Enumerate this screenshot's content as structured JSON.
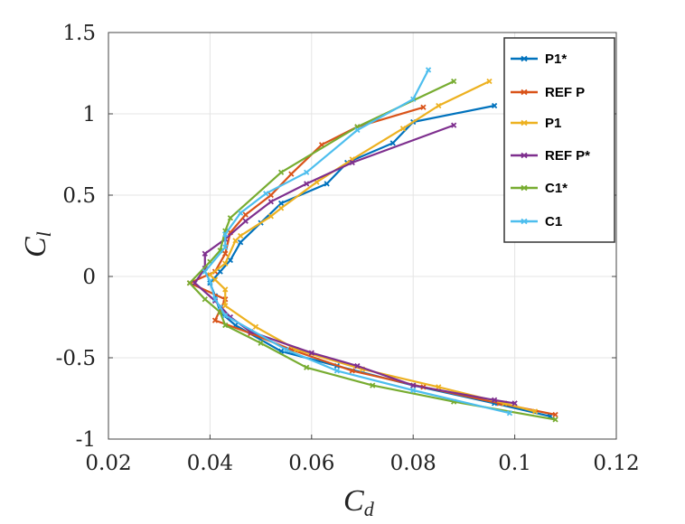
{
  "chart_data": {
    "type": "line",
    "title": "",
    "xlabel": "C",
    "xlabel_sub": "d",
    "ylabel": "C",
    "ylabel_sub": "l",
    "xlim": [
      0.02,
      0.12
    ],
    "ylim": [
      -1,
      1.5
    ],
    "xticks": [
      0.02,
      0.04,
      0.06,
      0.08,
      0.1,
      0.12
    ],
    "xtick_labels": [
      "0.02",
      "0.04",
      "0.06",
      "0.08",
      "0.1",
      "0.12"
    ],
    "yticks": [
      -1,
      -0.5,
      0,
      0.5,
      1,
      1.5
    ],
    "ytick_labels": [
      "-1",
      "-0.5",
      "0",
      "0.5",
      "1",
      "1.5"
    ],
    "grid": true,
    "legend_position": "top-right",
    "series": [
      {
        "name": "P1*",
        "color": "#0072BD",
        "points": [
          [
            0.096,
            1.05
          ],
          [
            0.08,
            0.95
          ],
          [
            0.076,
            0.82
          ],
          [
            0.067,
            0.7
          ],
          [
            0.063,
            0.57
          ],
          [
            0.054,
            0.45
          ],
          [
            0.05,
            0.33
          ],
          [
            0.046,
            0.21
          ],
          [
            0.044,
            0.1
          ],
          [
            0.042,
            0.03
          ],
          [
            0.04,
            -0.04
          ],
          [
            0.041,
            -0.12
          ],
          [
            0.042,
            -0.22
          ],
          [
            0.045,
            -0.3
          ],
          [
            0.054,
            -0.46
          ],
          [
            0.065,
            -0.55
          ],
          [
            0.08,
            -0.67
          ],
          [
            0.096,
            -0.78
          ],
          [
            0.107,
            -0.86
          ]
        ]
      },
      {
        "name": "REF P",
        "color": "#D95319",
        "points": [
          [
            0.082,
            1.04
          ],
          [
            0.069,
            0.92
          ],
          [
            0.062,
            0.81
          ],
          [
            0.056,
            0.63
          ],
          [
            0.052,
            0.5
          ],
          [
            0.047,
            0.38
          ],
          [
            0.044,
            0.27
          ],
          [
            0.043,
            0.14
          ],
          [
            0.041,
            0.03
          ],
          [
            0.036,
            -0.04
          ],
          [
            0.043,
            -0.14
          ],
          [
            0.041,
            -0.27
          ],
          [
            0.048,
            -0.35
          ],
          [
            0.056,
            -0.45
          ],
          [
            0.068,
            -0.58
          ],
          [
            0.082,
            -0.68
          ],
          [
            0.097,
            -0.78
          ],
          [
            0.108,
            -0.85
          ]
        ]
      },
      {
        "name": "P1",
        "color": "#EDB120",
        "points": [
          [
            0.095,
            1.2
          ],
          [
            0.085,
            1.05
          ],
          [
            0.078,
            0.91
          ],
          [
            0.068,
            0.72
          ],
          [
            0.061,
            0.58
          ],
          [
            0.054,
            0.42
          ],
          [
            0.052,
            0.37
          ],
          [
            0.046,
            0.25
          ],
          [
            0.045,
            0.22
          ],
          [
            0.043,
            0.08
          ],
          [
            0.04,
            0.01
          ],
          [
            0.041,
            -0.02
          ],
          [
            0.043,
            -0.08
          ],
          [
            0.043,
            -0.18
          ],
          [
            0.049,
            -0.31
          ],
          [
            0.057,
            -0.45
          ],
          [
            0.07,
            -0.57
          ],
          [
            0.085,
            -0.68
          ],
          [
            0.098,
            -0.78
          ],
          [
            0.104,
            -0.83
          ]
        ]
      },
      {
        "name": "REF P*",
        "color": "#7E2F8E",
        "points": [
          [
            0.088,
            0.93
          ],
          [
            0.068,
            0.7
          ],
          [
            0.059,
            0.57
          ],
          [
            0.052,
            0.46
          ],
          [
            0.047,
            0.34
          ],
          [
            0.043,
            0.23
          ],
          [
            0.039,
            0.14
          ],
          [
            0.039,
            0.05
          ],
          [
            0.037,
            -0.04
          ],
          [
            0.041,
            -0.15
          ],
          [
            0.044,
            -0.25
          ],
          [
            0.048,
            -0.34
          ],
          [
            0.06,
            -0.47
          ],
          [
            0.069,
            -0.55
          ],
          [
            0.08,
            -0.67
          ],
          [
            0.096,
            -0.76
          ],
          [
            0.1,
            -0.78
          ]
        ]
      },
      {
        "name": "C1*",
        "color": "#77AC30",
        "points": [
          [
            0.088,
            1.2
          ],
          [
            0.069,
            0.92
          ],
          [
            0.054,
            0.64
          ],
          [
            0.044,
            0.36
          ],
          [
            0.043,
            0.28
          ],
          [
            0.042,
            0.16
          ],
          [
            0.04,
            0.09
          ],
          [
            0.036,
            -0.04
          ],
          [
            0.039,
            -0.14
          ],
          [
            0.042,
            -0.22
          ],
          [
            0.043,
            -0.3
          ],
          [
            0.05,
            -0.41
          ],
          [
            0.059,
            -0.56
          ],
          [
            0.072,
            -0.67
          ],
          [
            0.088,
            -0.77
          ],
          [
            0.108,
            -0.88
          ]
        ]
      },
      {
        "name": "C1",
        "color": "#4DBEEE",
        "points": [
          [
            0.083,
            1.27
          ],
          [
            0.08,
            1.09
          ],
          [
            0.069,
            0.9
          ],
          [
            0.059,
            0.64
          ],
          [
            0.051,
            0.51
          ],
          [
            0.046,
            0.39
          ],
          [
            0.043,
            0.26
          ],
          [
            0.043,
            0.18
          ],
          [
            0.039,
            0.03
          ],
          [
            0.04,
            -0.03
          ],
          [
            0.041,
            -0.14
          ],
          [
            0.042,
            -0.19
          ],
          [
            0.043,
            -0.24
          ],
          [
            0.055,
            -0.45
          ],
          [
            0.065,
            -0.58
          ],
          [
            0.08,
            -0.7
          ],
          [
            0.099,
            -0.84
          ]
        ]
      }
    ]
  }
}
